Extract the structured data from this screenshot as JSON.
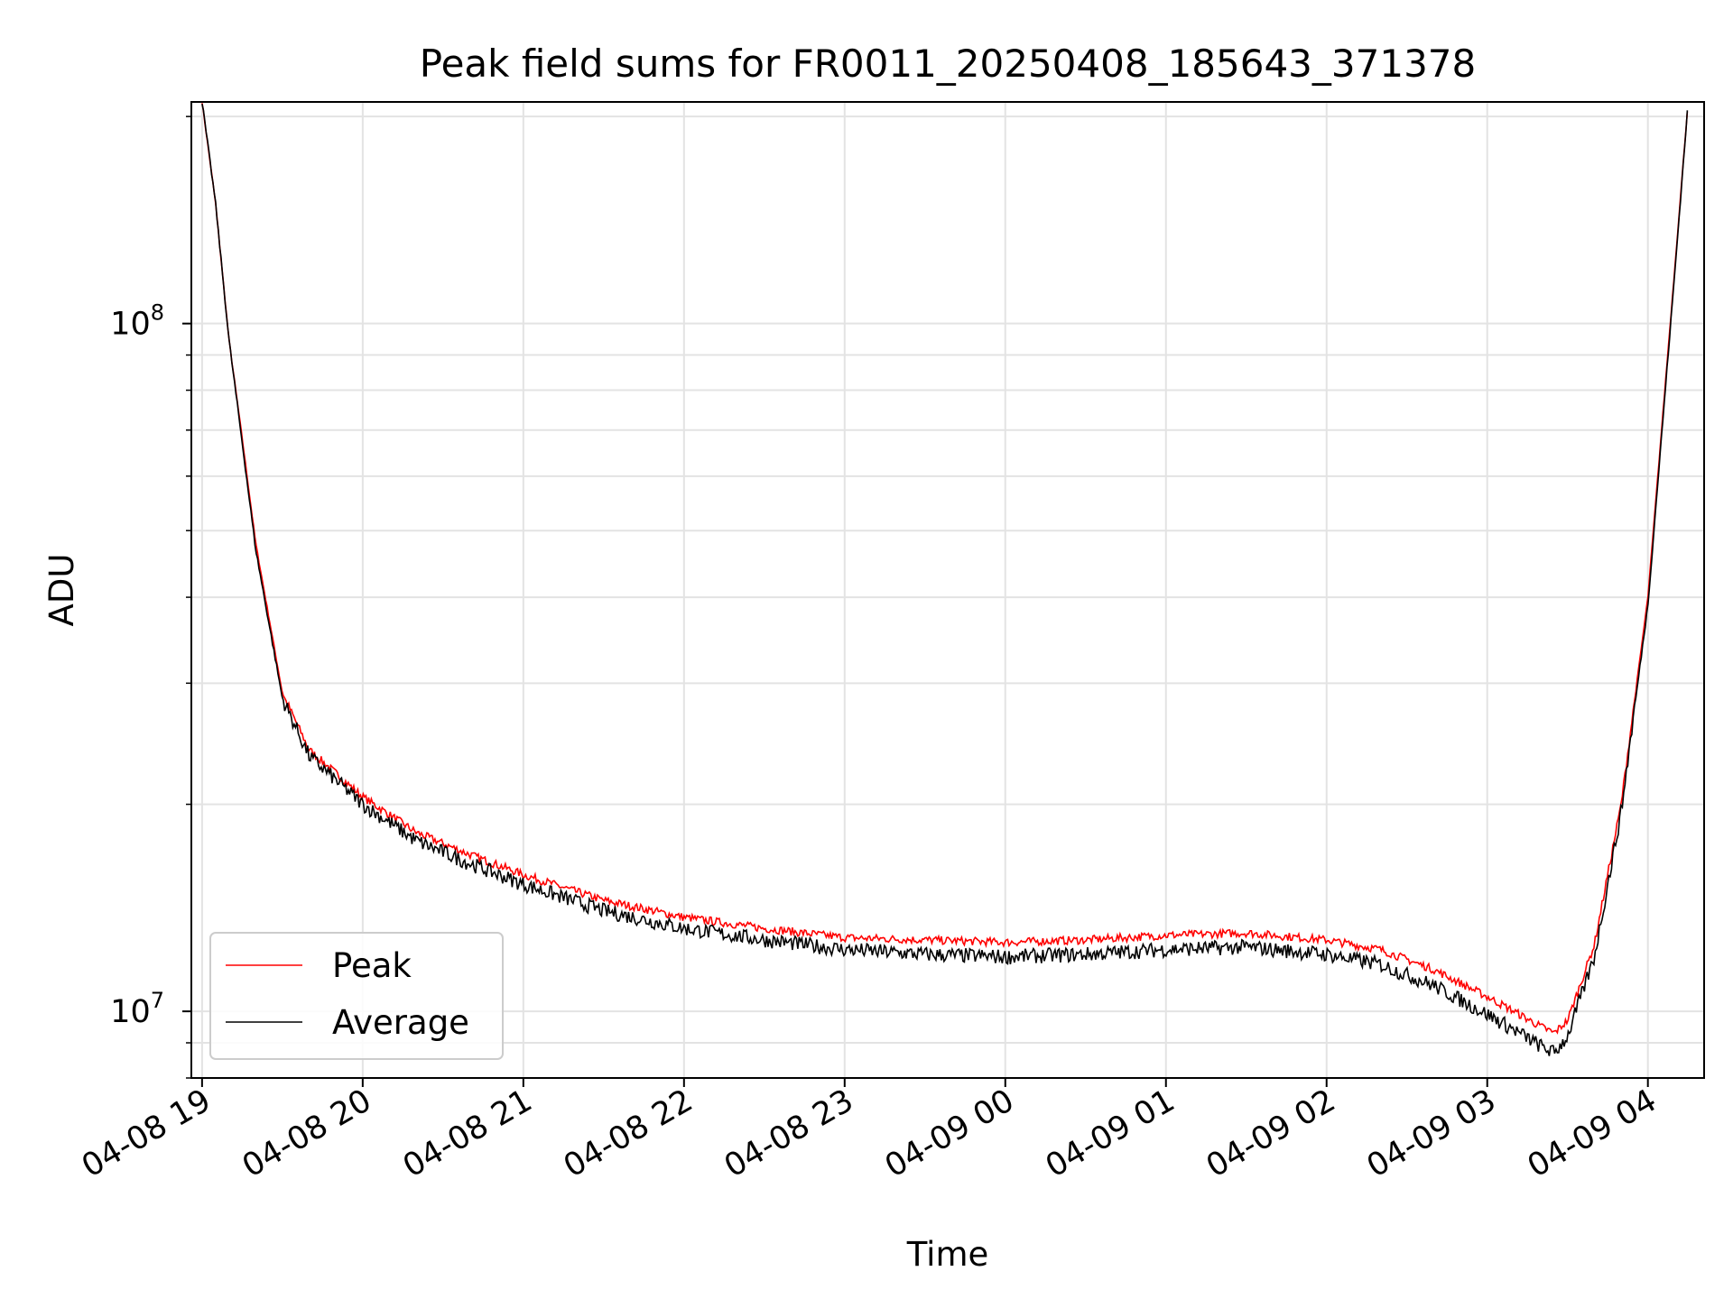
{
  "chart_data": {
    "type": "line",
    "title": "Peak field sums for FR0011_20250408_185643_371378",
    "xlabel": "Time",
    "ylabel": "ADU",
    "x_axis": {
      "type": "time",
      "range": [
        "2025-04-08 18:56",
        "2025-04-09 04:21"
      ],
      "tick_labels": [
        "04-08 19",
        "04-08 20",
        "04-08 21",
        "04-08 22",
        "04-08 23",
        "04-09 00",
        "04-09 01",
        "04-09 02",
        "04-09 03",
        "04-09 04"
      ]
    },
    "y_axis": {
      "scale": "log",
      "range": [
        8000000,
        210000000
      ],
      "major_ticks": [
        {
          "value": 10000000,
          "label_base": "10",
          "label_exp": "7"
        },
        {
          "value": 100000000,
          "label_base": "10",
          "label_exp": "8"
        }
      ]
    },
    "grid": true,
    "legend_position": "lower-left",
    "series": [
      {
        "name": "Peak",
        "color": "#ff0000",
        "x": [
          "2025-04-08 19:00",
          "2025-04-08 19:05",
          "2025-04-08 19:10",
          "2025-04-08 19:15",
          "2025-04-08 19:20",
          "2025-04-08 19:30",
          "2025-04-08 19:40",
          "2025-04-08 20:00",
          "2025-04-08 20:20",
          "2025-04-08 20:40",
          "2025-04-08 21:00",
          "2025-04-08 21:30",
          "2025-04-08 22:00",
          "2025-04-08 22:30",
          "2025-04-08 23:00",
          "2025-04-08 23:30",
          "2025-04-09 00:00",
          "2025-04-09 00:30",
          "2025-04-09 01:00",
          "2025-04-09 01:30",
          "2025-04-09 02:00",
          "2025-04-09 02:20",
          "2025-04-09 02:40",
          "2025-04-09 03:00",
          "2025-04-09 03:10",
          "2025-04-09 03:20",
          "2025-04-09 03:25",
          "2025-04-09 03:30",
          "2025-04-09 03:40",
          "2025-04-09 03:50",
          "2025-04-09 04:00",
          "2025-04-09 04:10",
          "2025-04-09 04:15"
        ],
        "y": [
          210000000,
          150000000,
          95000000,
          68000000,
          48000000,
          29000000,
          24000000,
          20500000,
          18200000,
          16900000,
          15800000,
          14500000,
          13700000,
          13200000,
          12800000,
          12700000,
          12600000,
          12700000,
          12900000,
          13000000,
          12700000,
          12300000,
          11500000,
          10500000,
          10000000,
          9500000,
          9300000,
          9700000,
          12500000,
          20000000,
          40000000,
          120000000,
          210000000
        ]
      },
      {
        "name": "Average",
        "color": "#000000",
        "x": [
          "2025-04-08 19:00",
          "2025-04-08 19:05",
          "2025-04-08 19:10",
          "2025-04-08 19:15",
          "2025-04-08 19:20",
          "2025-04-08 19:30",
          "2025-04-08 19:40",
          "2025-04-08 20:00",
          "2025-04-08 20:20",
          "2025-04-08 20:40",
          "2025-04-08 21:00",
          "2025-04-08 21:30",
          "2025-04-08 22:00",
          "2025-04-08 22:30",
          "2025-04-08 23:00",
          "2025-04-08 23:30",
          "2025-04-09 00:00",
          "2025-04-09 00:30",
          "2025-04-09 01:00",
          "2025-04-09 01:30",
          "2025-04-09 02:00",
          "2025-04-09 02:20",
          "2025-04-09 02:40",
          "2025-04-09 03:00",
          "2025-04-09 03:10",
          "2025-04-09 03:20",
          "2025-04-09 03:25",
          "2025-04-09 03:30",
          "2025-04-09 03:40",
          "2025-04-09 03:50",
          "2025-04-09 04:00",
          "2025-04-09 04:10",
          "2025-04-09 04:15"
        ],
        "y": [
          210000000,
          150000000,
          95000000,
          67000000,
          47000000,
          28500000,
          23500000,
          20000000,
          17700000,
          16400000,
          15300000,
          14000000,
          13200000,
          12700000,
          12300000,
          12100000,
          12000000,
          12100000,
          12300000,
          12400000,
          12100000,
          11700000,
          10900000,
          9900000,
          9400000,
          8900000,
          8700000,
          9200000,
          12000000,
          19500000,
          39000000,
          118000000,
          210000000
        ]
      }
    ]
  }
}
